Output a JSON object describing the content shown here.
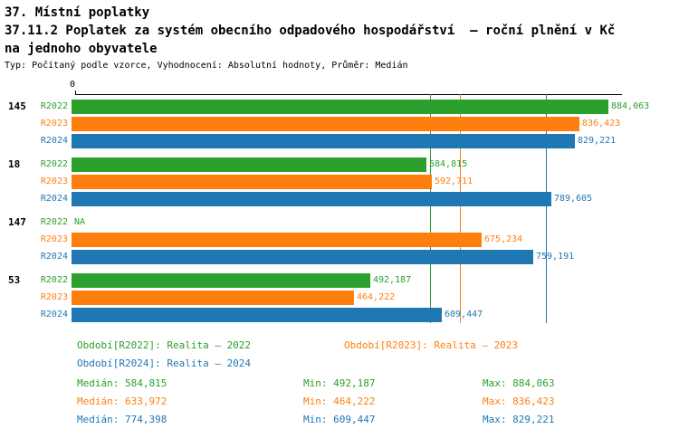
{
  "title": {
    "line1": "37. Místní poplatky",
    "line2": "37.11.2 Poplatek za systém obecního odpadového hospodářství  – roční plnění v Kč",
    "line3": "na jednoho obyvatele",
    "subtitle": "Typ: Počítaný podle vzorce, Vyhodnocení: Absolutní hodnoty, Průměr: Medián"
  },
  "colors": {
    "R2022": "#2ca02c",
    "R2023": "#ff7f0e",
    "R2024": "#1f77b4"
  },
  "chart_data": {
    "type": "bar",
    "orientation": "horizontal",
    "axis_origin_label": "0",
    "xlim": [
      0,
      900000
    ],
    "grid": false,
    "groups": [
      {
        "label": "145",
        "bars": [
          {
            "series": "R2022",
            "value": 884063,
            "display": "884,063"
          },
          {
            "series": "R2023",
            "value": 836423,
            "display": "836,423"
          },
          {
            "series": "R2024",
            "value": 829221,
            "display": "829,221"
          }
        ]
      },
      {
        "label": "18",
        "bars": [
          {
            "series": "R2022",
            "value": 584815,
            "display": "584,815"
          },
          {
            "series": "R2023",
            "value": 592711,
            "display": "592,711"
          },
          {
            "series": "R2024",
            "value": 789605,
            "display": "789,605"
          }
        ]
      },
      {
        "label": "147",
        "bars": [
          {
            "series": "R2022",
            "value": null,
            "display": "NA"
          },
          {
            "series": "R2023",
            "value": 675234,
            "display": "675,234"
          },
          {
            "series": "R2024",
            "value": 759191,
            "display": "759,191"
          }
        ]
      },
      {
        "label": "53",
        "bars": [
          {
            "series": "R2022",
            "value": 492187,
            "display": "492,187"
          },
          {
            "series": "R2023",
            "value": 464222,
            "display": "464,222"
          },
          {
            "series": "R2024",
            "value": 609447,
            "display": "609,447"
          }
        ]
      }
    ],
    "median_lines": [
      {
        "series": "R2022",
        "value": 584815
      },
      {
        "series": "R2023",
        "value": 633972
      },
      {
        "series": "R2024",
        "value": 774398
      }
    ]
  },
  "legend": [
    {
      "series": "R2022",
      "label": "Období[R2022]: Realita – 2022"
    },
    {
      "series": "R2023",
      "label": "Období[R2023]: Realita – 2023"
    },
    {
      "series": "R2024",
      "label": "Období[R2024]: Realita – 2024"
    }
  ],
  "stats": [
    {
      "series": "R2022",
      "median": "Medián: 584,815",
      "min": "Min: 492,187",
      "max": "Max: 884,063"
    },
    {
      "series": "R2023",
      "median": "Medián: 633,972",
      "min": "Min: 464,222",
      "max": "Max: 836,423"
    },
    {
      "series": "R2024",
      "median": "Medián: 774,398",
      "min": "Min: 609,447",
      "max": "Max: 829,221"
    }
  ]
}
